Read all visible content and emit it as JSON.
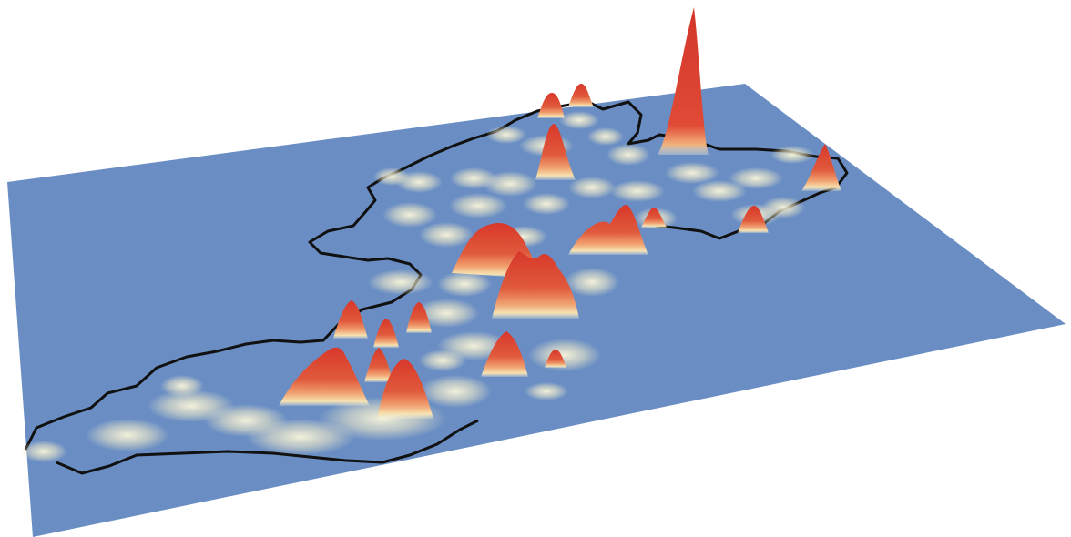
{
  "colors": {
    "background": "#ffffff",
    "plane": "#6a8ec4",
    "outline": "#111111",
    "peak_low": "#f7efc4",
    "peak_mid": "#f2b07a",
    "peak_high": "#dc3b2c"
  },
  "surface": {
    "type": "3d-density-surface",
    "overlay": "coastline-outline"
  }
}
